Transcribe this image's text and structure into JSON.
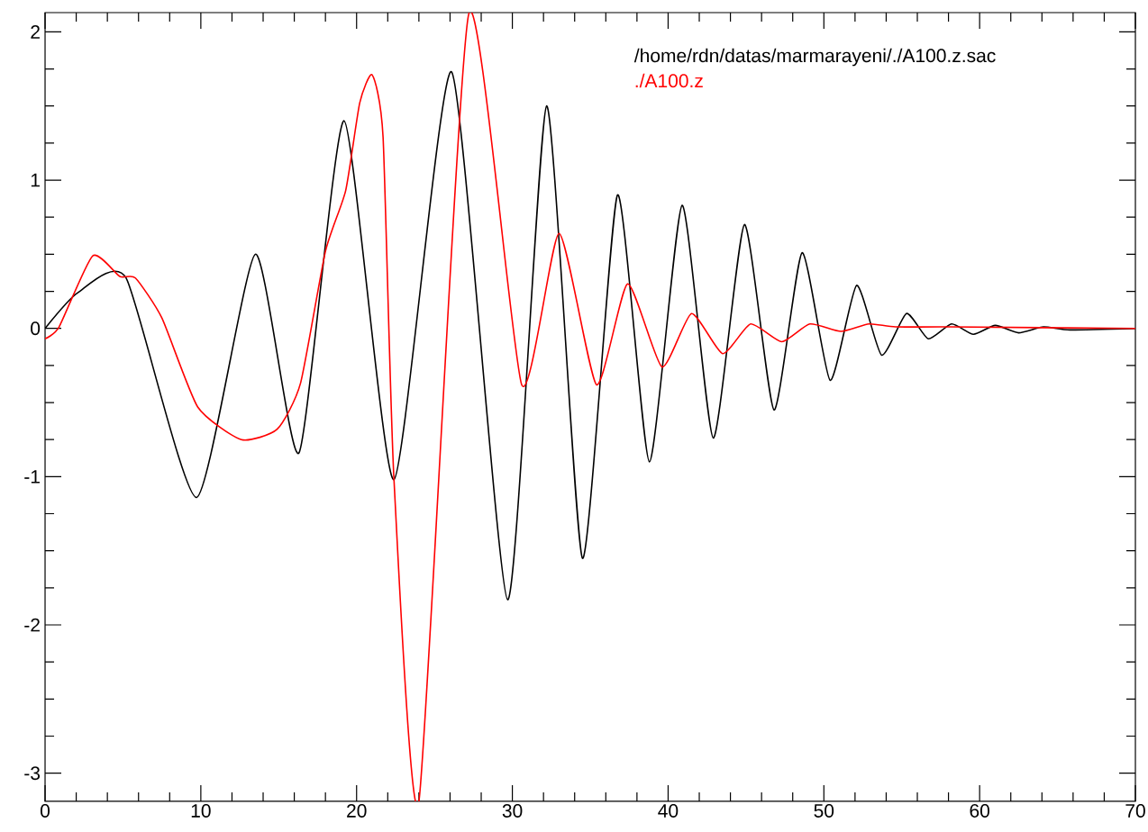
{
  "chart_data": {
    "type": "line",
    "xlim": [
      0,
      70
    ],
    "ylim": [
      -3.19,
      2.13
    ],
    "xticks": [
      0,
      10,
      20,
      30,
      40,
      50,
      60,
      70
    ],
    "yticks": [
      -3,
      -2,
      -1,
      0,
      1,
      2
    ],
    "grid": false,
    "legend": "top right",
    "marker": "none",
    "line_style": "solid",
    "series": [
      {
        "name": "/home/rdn/datas/marmarayeni/./A100.z.sac",
        "color": "#000000",
        "x": [
          0,
          2.1,
          5.2,
          9.73,
          13.5,
          16.3,
          19.2,
          22.4,
          26.1,
          29.7,
          32.2,
          34.5,
          36.75,
          38.8,
          40.9,
          42.9,
          44.9,
          46.8,
          48.6,
          50.4,
          52.1,
          53.7,
          55.3,
          56.7,
          58.2,
          59.6,
          61.0,
          62.5,
          64.1,
          65.8,
          70
        ],
        "values": [
          0,
          0.24,
          0.34,
          -1.14,
          0.5,
          -0.84,
          1.4,
          -1.02,
          1.73,
          -1.83,
          1.5,
          -1.55,
          0.9,
          -0.9,
          0.83,
          -0.74,
          0.7,
          -0.55,
          0.51,
          -0.35,
          0.29,
          -0.18,
          0.1,
          -0.07,
          0.03,
          -0.04,
          0.02,
          -0.03,
          0.01,
          -0.01,
          0
        ]
      },
      {
        "name": "./A100.z",
        "color": "#ff0000",
        "x": [
          0,
          0.9,
          3.06,
          4.8,
          5.8,
          7.5,
          9.8,
          12.6,
          14.9,
          16.4,
          18.0,
          19.3,
          20.2,
          21.0,
          21.7,
          22.4,
          24.0,
          27.2,
          30.6,
          33.0,
          35.4,
          37.4,
          39.6,
          41.5,
          43.5,
          45.3,
          47.3,
          49.1,
          51.1,
          52.9,
          54.6,
          58.1,
          70
        ],
        "values": [
          -0.07,
          0.01,
          0.49,
          0.35,
          0.34,
          0.07,
          -0.53,
          -0.75,
          -0.68,
          -0.37,
          0.52,
          0.93,
          1.52,
          1.71,
          1.29,
          -1.02,
          -3.19,
          2.12,
          -0.38,
          0.64,
          -0.38,
          0.3,
          -0.26,
          0.1,
          -0.17,
          0.03,
          -0.09,
          0.03,
          -0.02,
          0.03,
          0.01,
          0.01,
          0
        ]
      }
    ]
  }
}
